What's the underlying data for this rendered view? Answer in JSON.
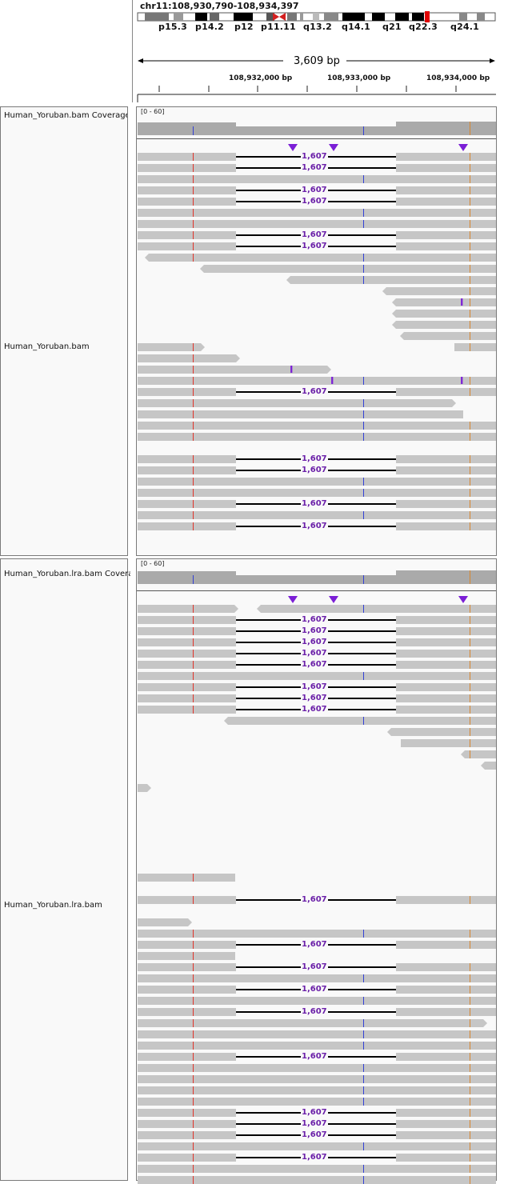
{
  "header": {
    "locus": "chr11:108,930,790-108,934,397",
    "span_label": "3,609 bp",
    "cytobands": [
      "p15.3",
      "p14.2",
      "p12",
      "p11.11",
      "q13.2",
      "q14.1",
      "q21",
      "q22.3",
      "q24.1"
    ],
    "positions": [
      "108,932,000 bp",
      "108,933,000 bp",
      "108,934,000 bp"
    ]
  },
  "tracks": [
    {
      "coverage_name": "Human_Yoruban.bam Coverage",
      "range": "[0 - 60]",
      "alignment_name": "Human_Yoruban.bam"
    },
    {
      "coverage_name": "Human_Yoruban.lra.bam Coverage",
      "range": "[0 - 60]",
      "alignment_name": "Human_Yoruban.lra.bam"
    }
  ],
  "junction_label": "1,607",
  "colors": {
    "read": "#c6c6c6",
    "mismatch_red": "#e0352b",
    "mismatch_blue": "#3340d6",
    "mismatch_orange": "#d8862d",
    "insertion": "#7b1fd6",
    "junction_label": "#6a1fa8"
  }
}
